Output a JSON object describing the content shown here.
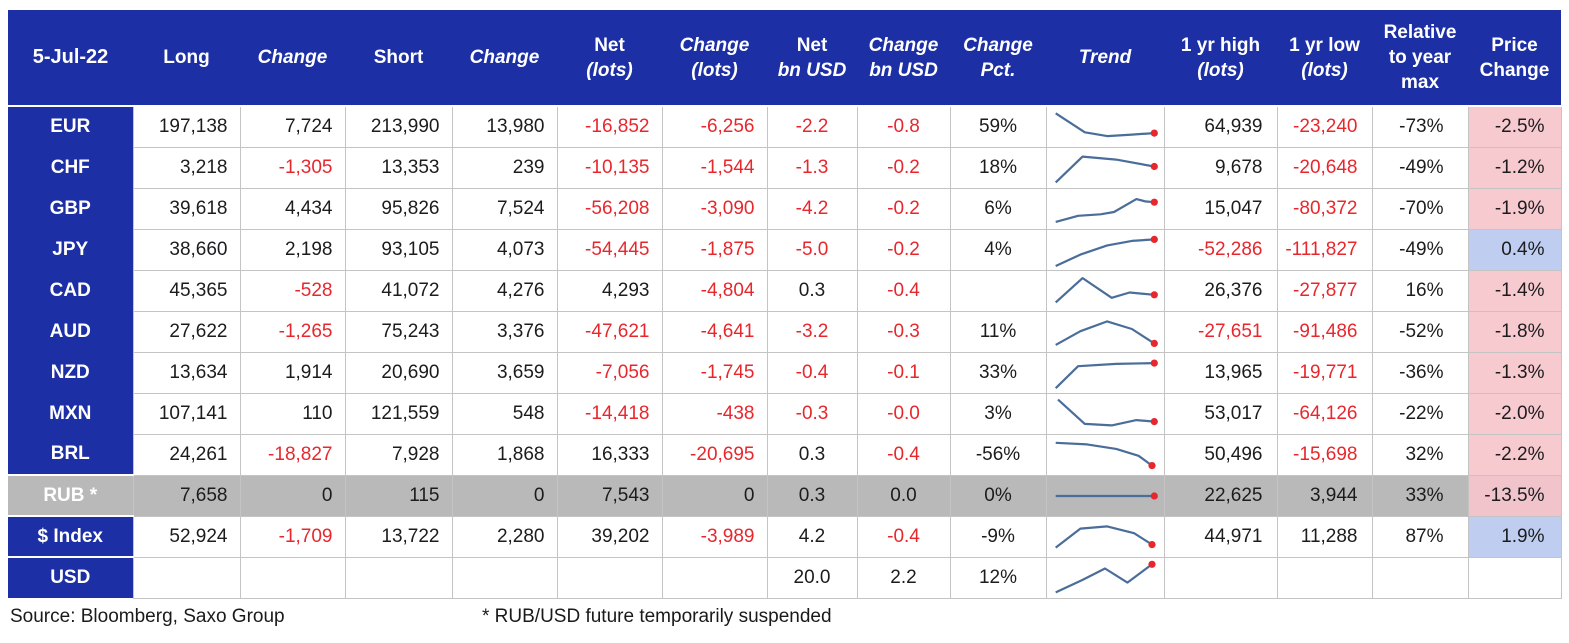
{
  "chart_data": {
    "type": "table",
    "date": "5-Jul-22",
    "columns": [
      {
        "key": "long",
        "lines": [
          {
            "t": "Long",
            "i": false
          }
        ],
        "align": "right",
        "red_neg": true
      },
      {
        "key": "change1",
        "lines": [
          {
            "t": "Change",
            "i": true
          }
        ],
        "align": "right",
        "red_neg": true
      },
      {
        "key": "short",
        "lines": [
          {
            "t": "Short",
            "i": false
          }
        ],
        "align": "right",
        "red_neg": true
      },
      {
        "key": "change2",
        "lines": [
          {
            "t": "Change",
            "i": true
          }
        ],
        "align": "right",
        "red_neg": true
      },
      {
        "key": "net_lots",
        "lines": [
          {
            "t": "Net",
            "i": false
          },
          {
            "t": "(lots)",
            "i": true
          }
        ],
        "align": "right",
        "red_neg": true
      },
      {
        "key": "change_lots",
        "lines": [
          {
            "t": "Change",
            "i": true
          },
          {
            "t": "(lots)",
            "i": true
          }
        ],
        "align": "right",
        "red_neg": true
      },
      {
        "key": "net_bn",
        "lines": [
          {
            "t": "Net",
            "i": false
          },
          {
            "t": "bn USD",
            "i": true
          }
        ],
        "align": "center",
        "red_neg": true
      },
      {
        "key": "change_bn",
        "lines": [
          {
            "t": "Change",
            "i": true
          },
          {
            "t": "bn USD",
            "i": true
          }
        ],
        "align": "center",
        "red_neg": true
      },
      {
        "key": "change_pct",
        "lines": [
          {
            "t": "Change",
            "i": true
          },
          {
            "t": "Pct.",
            "i": true
          }
        ],
        "align": "center",
        "red_neg": false
      },
      {
        "key": "trend",
        "lines": [
          {
            "t": "Trend",
            "i": true
          }
        ],
        "align": "center",
        "red_neg": false
      },
      {
        "key": "yr_high",
        "lines": [
          {
            "t": "1 yr high",
            "i": false
          },
          {
            "t": "(lots)",
            "i": true
          }
        ],
        "align": "right",
        "red_neg": true
      },
      {
        "key": "yr_low",
        "lines": [
          {
            "t": "1 yr low",
            "i": false
          },
          {
            "t": "(lots)",
            "i": true
          }
        ],
        "align": "right",
        "red_neg": true
      },
      {
        "key": "rel_max",
        "lines": [
          {
            "t": "Relative",
            "i": false
          },
          {
            "t": "to year",
            "i": false
          },
          {
            "t": "max",
            "i": false
          }
        ],
        "align": "right",
        "red_neg": false
      },
      {
        "key": "price_chg",
        "lines": [
          {
            "t": "Price",
            "i": false
          },
          {
            "t": "Change",
            "i": false
          }
        ],
        "align": "right",
        "red_neg": false
      }
    ],
    "rows": [
      {
        "label": "EUR",
        "cells": {
          "long": "197,138",
          "change1": "7,724",
          "short": "213,990",
          "change2": "13,980",
          "net_lots": "-16,852",
          "change_lots": "-6,256",
          "net_bn": "-2.2",
          "change_bn": "-0.8",
          "change_pct": "59%",
          "yr_high": "64,939",
          "yr_low": "-23,240",
          "rel_max": "-73%",
          "price_chg": "-2.5%"
        },
        "price_bg": "pink",
        "trend": [
          [
            6,
            14
          ],
          [
            32,
            64
          ],
          [
            52,
            74
          ],
          [
            74,
            70
          ],
          [
            94,
            66
          ]
        ]
      },
      {
        "label": "CHF",
        "cells": {
          "long": "3,218",
          "change1": "-1,305",
          "short": "13,353",
          "change2": "239",
          "net_lots": "-10,135",
          "change_lots": "-1,544",
          "net_bn": "-1.3",
          "change_bn": "-0.2",
          "change_pct": "18%",
          "yr_high": "9,678",
          "yr_low": "-20,648",
          "rel_max": "-49%",
          "price_chg": "-1.2%"
        },
        "price_bg": "pink",
        "trend": [
          [
            6,
            88
          ],
          [
            30,
            20
          ],
          [
            60,
            28
          ],
          [
            94,
            46
          ]
        ]
      },
      {
        "label": "GBP",
        "cells": {
          "long": "39,618",
          "change1": "4,434",
          "short": "95,826",
          "change2": "7,524",
          "net_lots": "-56,208",
          "change_lots": "-3,090",
          "net_bn": "-4.2",
          "change_bn": "-0.2",
          "change_pct": "6%",
          "yr_high": "15,047",
          "yr_low": "-80,372",
          "rel_max": "-70%",
          "price_chg": "-1.9%"
        },
        "price_bg": "pink",
        "trend": [
          [
            6,
            84
          ],
          [
            26,
            68
          ],
          [
            46,
            64
          ],
          [
            58,
            58
          ],
          [
            78,
            24
          ],
          [
            86,
            30
          ],
          [
            94,
            32
          ]
        ]
      },
      {
        "label": "JPY",
        "cells": {
          "long": "38,660",
          "change1": "2,198",
          "short": "93,105",
          "change2": "4,073",
          "net_lots": "-54,445",
          "change_lots": "-1,875",
          "net_bn": "-5.0",
          "change_bn": "-0.2",
          "change_pct": "4%",
          "yr_high": "-52,286",
          "yr_low": "-111,827",
          "rel_max": "-49%",
          "price_chg": "0.4%"
        },
        "price_bg": "blue",
        "trend": [
          [
            6,
            92
          ],
          [
            28,
            62
          ],
          [
            52,
            38
          ],
          [
            74,
            26
          ],
          [
            94,
            22
          ]
        ]
      },
      {
        "label": "CAD",
        "cells": {
          "long": "45,365",
          "change1": "-528",
          "short": "41,072",
          "change2": "4,276",
          "net_lots": "4,293",
          "change_lots": "-4,804",
          "net_bn": "0.3",
          "change_bn": "-0.4",
          "change_pct": "",
          "yr_high": "26,376",
          "yr_low": "-27,877",
          "rel_max": "16%",
          "price_chg": "-1.4%"
        },
        "price_bg": "pink",
        "trend": [
          [
            6,
            80
          ],
          [
            30,
            16
          ],
          [
            56,
            68
          ],
          [
            72,
            54
          ],
          [
            94,
            60
          ]
        ]
      },
      {
        "label": "AUD",
        "cells": {
          "long": "27,622",
          "change1": "-1,265",
          "short": "75,243",
          "change2": "3,376",
          "net_lots": "-47,621",
          "change_lots": "-4,641",
          "net_bn": "-3.2",
          "change_bn": "-0.3",
          "change_pct": "11%",
          "yr_high": "-27,651",
          "yr_low": "-91,486",
          "rel_max": "-52%",
          "price_chg": "-1.8%"
        },
        "price_bg": "pink",
        "trend": [
          [
            6,
            84
          ],
          [
            28,
            48
          ],
          [
            52,
            22
          ],
          [
            74,
            42
          ],
          [
            94,
            80
          ]
        ]
      },
      {
        "label": "NZD",
        "cells": {
          "long": "13,634",
          "change1": "1,914",
          "short": "20,690",
          "change2": "3,659",
          "net_lots": "-7,056",
          "change_lots": "-1,745",
          "net_bn": "-0.4",
          "change_bn": "-0.1",
          "change_pct": "33%",
          "yr_high": "13,965",
          "yr_low": "-19,771",
          "rel_max": "-36%",
          "price_chg": "-1.3%"
        },
        "price_bg": "pink",
        "trend": [
          [
            6,
            90
          ],
          [
            26,
            32
          ],
          [
            60,
            26
          ],
          [
            94,
            24
          ]
        ]
      },
      {
        "label": "MXN",
        "cells": {
          "long": "107,141",
          "change1": "110",
          "short": "121,559",
          "change2": "548",
          "net_lots": "-14,418",
          "change_lots": "-438",
          "net_bn": "-0.3",
          "change_bn": "-0.0",
          "change_pct": "3%",
          "yr_high": "53,017",
          "yr_low": "-64,126",
          "rel_max": "-22%",
          "price_chg": "-2.0%"
        },
        "price_bg": "pink",
        "trend": [
          [
            8,
            12
          ],
          [
            32,
            76
          ],
          [
            56,
            80
          ],
          [
            78,
            66
          ],
          [
            94,
            70
          ]
        ]
      },
      {
        "label": "BRL",
        "cells": {
          "long": "24,261",
          "change1": "-18,827",
          "short": "7,928",
          "change2": "1,868",
          "net_lots": "16,333",
          "change_lots": "-20,695",
          "net_bn": "0.3",
          "change_bn": "-0.4",
          "change_pct": "-56%",
          "yr_high": "50,496",
          "yr_low": "-15,698",
          "rel_max": "32%",
          "price_chg": "-2.2%"
        },
        "price_bg": "pink",
        "trend": [
          [
            6,
            18
          ],
          [
            34,
            22
          ],
          [
            60,
            34
          ],
          [
            80,
            52
          ],
          [
            92,
            78
          ]
        ]
      },
      {
        "label": "RUB *",
        "variant": "suspended",
        "cells": {
          "long": "7,658",
          "change1": "0",
          "short": "115",
          "change2": "0",
          "net_lots": "7,543",
          "change_lots": "0",
          "net_bn": "0.3",
          "change_bn": "0.0",
          "change_pct": "0%",
          "yr_high": "22,625",
          "yr_low": "3,944",
          "rel_max": "33%",
          "price_chg": "-13.5%"
        },
        "price_bg": "pink",
        "trend": [
          [
            6,
            50
          ],
          [
            94,
            50
          ]
        ]
      },
      {
        "label": "$ Index",
        "cells": {
          "long": "52,924",
          "change1": "-1,709",
          "short": "13,722",
          "change2": "2,280",
          "net_lots": "39,202",
          "change_lots": "-3,989",
          "net_bn": "4.2",
          "change_bn": "-0.4",
          "change_pct": "-9%",
          "yr_high": "44,971",
          "yr_low": "11,288",
          "rel_max": "87%",
          "price_chg": "1.9%"
        },
        "price_bg": "blue",
        "trend": [
          [
            6,
            78
          ],
          [
            28,
            28
          ],
          [
            52,
            22
          ],
          [
            76,
            40
          ],
          [
            92,
            70
          ]
        ]
      },
      {
        "label": "USD",
        "cells": {
          "long": "",
          "change1": "",
          "short": "",
          "change2": "",
          "net_lots": "",
          "change_lots": "",
          "net_bn": "20.0",
          "change_bn": "2.2",
          "change_pct": "12%",
          "yr_high": "",
          "yr_low": "",
          "rel_max": "",
          "price_chg": ""
        },
        "price_bg": "",
        "trend": [
          [
            6,
            88
          ],
          [
            30,
            55
          ],
          [
            50,
            25
          ],
          [
            70,
            62
          ],
          [
            92,
            14
          ]
        ]
      }
    ]
  },
  "footer": {
    "source": "Source: Bloomberg, Saxo Group",
    "note": "* RUB/USD future temporarily suspended"
  },
  "colors": {
    "header_blue": "#1c2fa5",
    "row_gray": "#b9b9b9",
    "negative_red": "#e8272d",
    "pink_bg": "#f7cad0",
    "blue_bg": "#bfcdf1",
    "sparkline": "#4a6d99",
    "dot": "#e8272d",
    "grid": "#c4c4c4",
    "text_dark": "#1c1c1e"
  }
}
